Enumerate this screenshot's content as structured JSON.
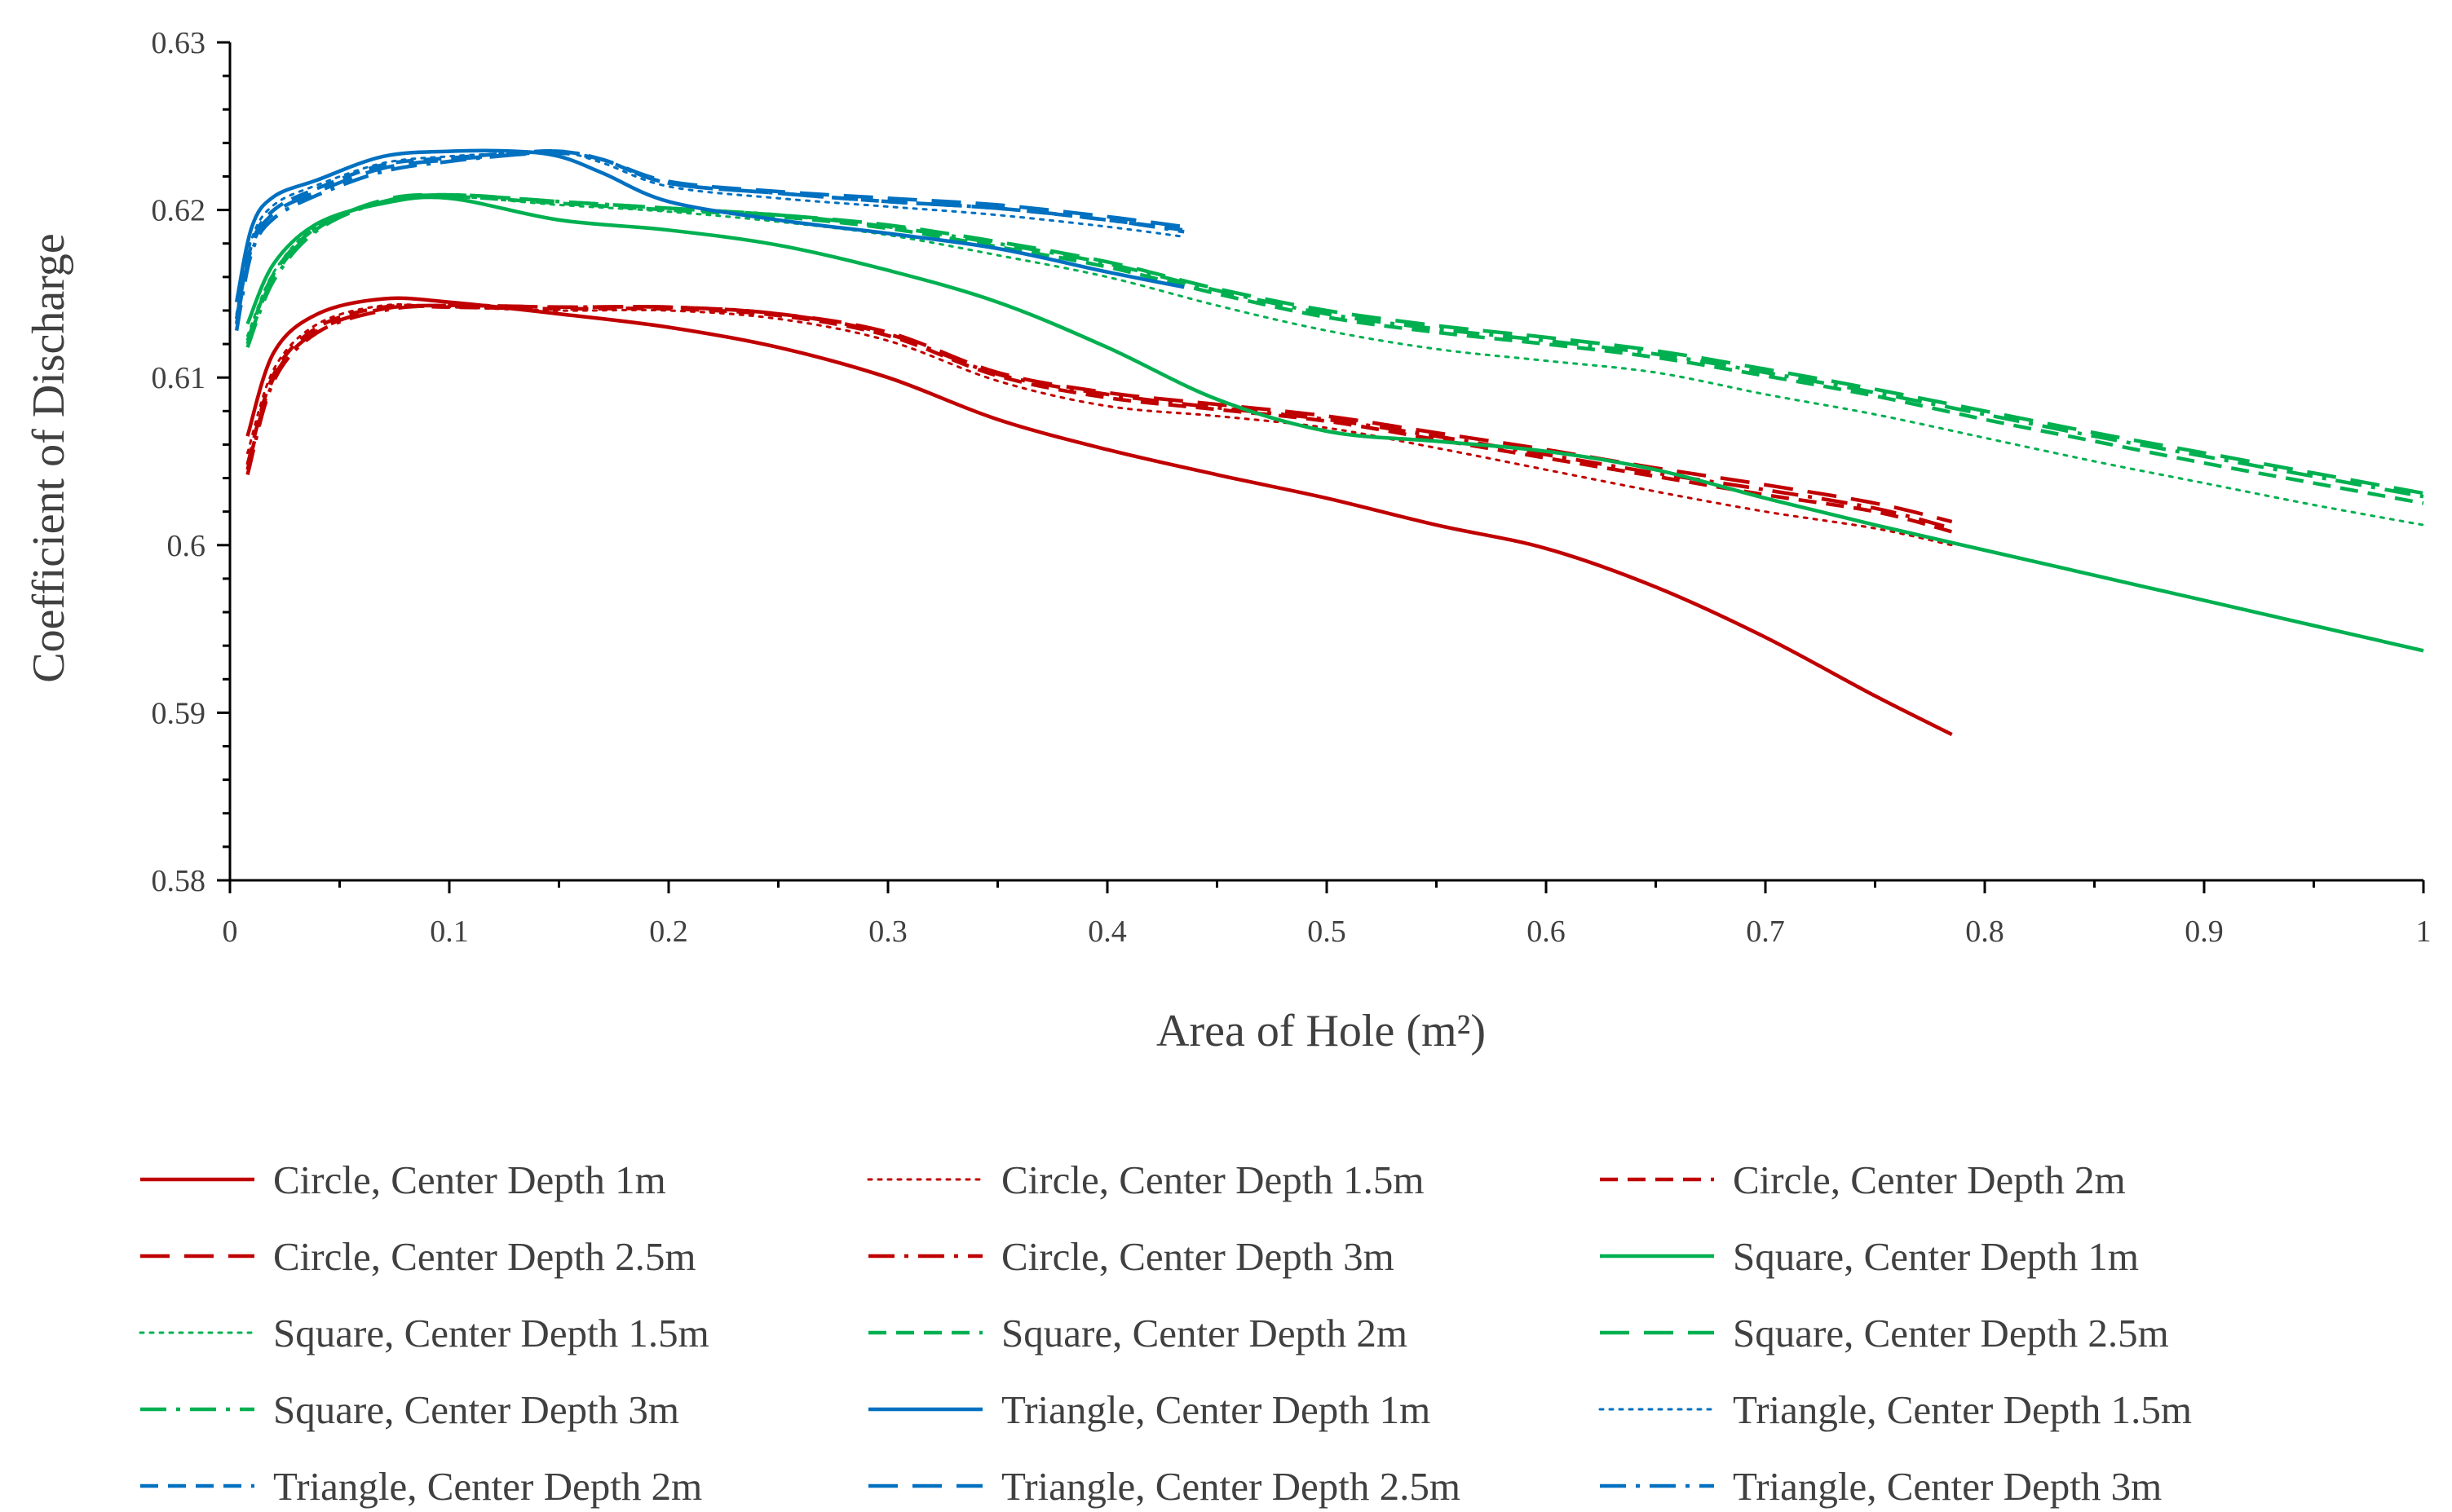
{
  "chart_data": {
    "type": "line",
    "title": "",
    "xlabel": "Area of Hole (m²)",
    "ylabel": "Coefficient of Discharge",
    "xlim": [
      0,
      1
    ],
    "ylim": [
      0.58,
      0.63
    ],
    "grid": false,
    "legend_position": "bottom",
    "x_ticks": [
      "0",
      "0.1",
      "0.2",
      "0.3",
      "0.4",
      "0.5",
      "0.6",
      "0.7",
      "0.8",
      "0.9",
      "1"
    ],
    "y_ticks": [
      "0.58",
      "0.59",
      "0.6",
      "0.61",
      "0.62",
      "0.63"
    ],
    "series": [
      {
        "name": "Circle, Center Depth 1m",
        "color": "#C00000",
        "style": "solid",
        "x": [
          0.008,
          0.02,
          0.04,
          0.07,
          0.1,
          0.15,
          0.2,
          0.25,
          0.3,
          0.35,
          0.4,
          0.45,
          0.5,
          0.55,
          0.6,
          0.65,
          0.7,
          0.75,
          0.785
        ],
        "y": [
          0.6065,
          0.6115,
          0.6138,
          0.6147,
          0.6145,
          0.6138,
          0.613,
          0.6118,
          0.61,
          0.6075,
          0.6057,
          0.6042,
          0.6028,
          0.6012,
          0.5998,
          0.5975,
          0.5945,
          0.591,
          0.5887
        ]
      },
      {
        "name": "Circle, Center Depth 1.5m",
        "color": "#C00000",
        "style": "dot",
        "x": [
          0.008,
          0.02,
          0.04,
          0.07,
          0.1,
          0.15,
          0.2,
          0.25,
          0.3,
          0.35,
          0.4,
          0.45,
          0.5,
          0.55,
          0.6,
          0.65,
          0.7,
          0.75,
          0.785
        ],
        "y": [
          0.6055,
          0.6105,
          0.6132,
          0.6143,
          0.6142,
          0.614,
          0.614,
          0.6135,
          0.6122,
          0.6098,
          0.6083,
          0.6077,
          0.607,
          0.6058,
          0.6045,
          0.6032,
          0.602,
          0.601,
          0.6
        ],
        "note": "style dotted"
      },
      {
        "name": "Circle, Center Depth 2m",
        "color": "#C00000",
        "style": "dash",
        "x": [
          0.008,
          0.02,
          0.04,
          0.07,
          0.1,
          0.15,
          0.2,
          0.25,
          0.3,
          0.35,
          0.4,
          0.45,
          0.5,
          0.55,
          0.6,
          0.65,
          0.7,
          0.75,
          0.785
        ],
        "y": [
          0.6048,
          0.6102,
          0.613,
          0.6142,
          0.6142,
          0.6141,
          0.6141,
          0.6137,
          0.6125,
          0.6101,
          0.6088,
          0.6081,
          0.6074,
          0.6063,
          0.6052,
          0.6041,
          0.603,
          0.602,
          0.6008
        ]
      },
      {
        "name": "Circle, Center Depth 2.5m",
        "color": "#C00000",
        "style": "longdash",
        "x": [
          0.008,
          0.02,
          0.04,
          0.07,
          0.1,
          0.15,
          0.2,
          0.25,
          0.3,
          0.35,
          0.4,
          0.45,
          0.5,
          0.55,
          0.6,
          0.65,
          0.7,
          0.75,
          0.785
        ],
        "y": [
          0.6045,
          0.61,
          0.6128,
          0.6141,
          0.6143,
          0.6142,
          0.6142,
          0.6138,
          0.6127,
          0.6103,
          0.6091,
          0.6084,
          0.6077,
          0.6067,
          0.6057,
          0.6046,
          0.6036,
          0.6025,
          0.6014
        ]
      },
      {
        "name": "Circle, Center Depth 3m",
        "color": "#C00000",
        "style": "dashdot",
        "x": [
          0.008,
          0.02,
          0.04,
          0.07,
          0.1,
          0.15,
          0.2,
          0.25,
          0.3,
          0.35,
          0.4,
          0.45,
          0.5,
          0.55,
          0.6,
          0.65,
          0.7,
          0.75,
          0.785
        ],
        "y": [
          0.6042,
          0.6098,
          0.6127,
          0.614,
          0.6143,
          0.6142,
          0.6142,
          0.6138,
          0.6126,
          0.6102,
          0.609,
          0.6082,
          0.6075,
          0.6065,
          0.6054,
          0.6043,
          0.6033,
          0.6022,
          0.601
        ]
      },
      {
        "name": "Square, Center Depth 1m",
        "color": "#00B050",
        "style": "solid",
        "x": [
          0.008,
          0.02,
          0.04,
          0.07,
          0.1,
          0.15,
          0.2,
          0.25,
          0.3,
          0.35,
          0.4,
          0.45,
          0.5,
          0.55,
          0.6,
          0.65,
          0.7,
          0.75,
          0.8,
          0.85,
          0.9,
          0.95,
          1.0
        ],
        "y": [
          0.6132,
          0.6168,
          0.6192,
          0.6204,
          0.6207,
          0.6194,
          0.6188,
          0.6179,
          0.6164,
          0.6145,
          0.6118,
          0.6087,
          0.6068,
          0.6062,
          0.6056,
          0.6045,
          0.6028,
          0.6012,
          0.5997,
          0.5982,
          0.5967,
          0.5952,
          0.5937
        ]
      },
      {
        "name": "Square, Center Depth 1.5m",
        "color": "#00B050",
        "style": "dot",
        "x": [
          0.008,
          0.02,
          0.04,
          0.07,
          0.1,
          0.15,
          0.2,
          0.25,
          0.3,
          0.35,
          0.4,
          0.45,
          0.5,
          0.55,
          0.6,
          0.65,
          0.7,
          0.75,
          0.8,
          0.85,
          0.9,
          0.95,
          1.0
        ],
        "y": [
          0.6125,
          0.6163,
          0.6191,
          0.6205,
          0.6208,
          0.6203,
          0.6199,
          0.6193,
          0.6185,
          0.6173,
          0.616,
          0.6143,
          0.6128,
          0.6117,
          0.611,
          0.6103,
          0.609,
          0.6078,
          0.6064,
          0.605,
          0.6037,
          0.6024,
          0.6012
        ]
      },
      {
        "name": "Square, Center Depth 2m",
        "color": "#00B050",
        "style": "dash",
        "x": [
          0.008,
          0.02,
          0.04,
          0.07,
          0.1,
          0.15,
          0.2,
          0.25,
          0.3,
          0.35,
          0.4,
          0.45,
          0.5,
          0.55,
          0.6,
          0.65,
          0.7,
          0.75,
          0.8,
          0.85,
          0.9,
          0.95,
          1.0
        ],
        "y": [
          0.6122,
          0.6162,
          0.619,
          0.6205,
          0.6208,
          0.6204,
          0.62,
          0.6196,
          0.6189,
          0.6178,
          0.6166,
          0.615,
          0.6136,
          0.6127,
          0.612,
          0.6112,
          0.6101,
          0.6089,
          0.6075,
          0.6062,
          0.6049,
          0.6037,
          0.6025
        ]
      },
      {
        "name": "Square, Center Depth 2.5m",
        "color": "#00B050",
        "style": "longdash",
        "x": [
          0.008,
          0.02,
          0.04,
          0.07,
          0.1,
          0.15,
          0.2,
          0.25,
          0.3,
          0.35,
          0.4,
          0.45,
          0.5,
          0.55,
          0.6,
          0.65,
          0.7,
          0.75,
          0.8,
          0.85,
          0.9,
          0.95,
          1.0
        ],
        "y": [
          0.612,
          0.616,
          0.6189,
          0.6206,
          0.6209,
          0.6205,
          0.6201,
          0.6197,
          0.6191,
          0.6181,
          0.6169,
          0.6153,
          0.614,
          0.6131,
          0.6124,
          0.6116,
          0.6105,
          0.6093,
          0.608,
          0.6067,
          0.6055,
          0.6043,
          0.6031
        ]
      },
      {
        "name": "Square, Center Depth 3m",
        "color": "#00B050",
        "style": "dashdot",
        "x": [
          0.008,
          0.02,
          0.04,
          0.07,
          0.1,
          0.15,
          0.2,
          0.25,
          0.3,
          0.35,
          0.4,
          0.45,
          0.5,
          0.55,
          0.6,
          0.65,
          0.7,
          0.75,
          0.8,
          0.85,
          0.9,
          0.95,
          1.0
        ],
        "y": [
          0.6118,
          0.6158,
          0.6188,
          0.6205,
          0.6209,
          0.6205,
          0.6201,
          0.6197,
          0.619,
          0.618,
          0.6168,
          0.6152,
          0.6138,
          0.6129,
          0.6122,
          0.6114,
          0.6103,
          0.6091,
          0.6078,
          0.6065,
          0.6053,
          0.6041,
          0.6029
        ]
      },
      {
        "name": "Triangle, Center Depth 1m",
        "color": "#0070C0",
        "style": "solid",
        "x": [
          0.003,
          0.01,
          0.02,
          0.04,
          0.07,
          0.1,
          0.13,
          0.15,
          0.17,
          0.2,
          0.25,
          0.3,
          0.35,
          0.4,
          0.435
        ],
        "y": [
          0.6145,
          0.619,
          0.6208,
          0.6218,
          0.6232,
          0.6235,
          0.6235,
          0.6232,
          0.6222,
          0.6205,
          0.6194,
          0.6186,
          0.6177,
          0.6163,
          0.6154
        ]
      },
      {
        "name": "Triangle, Center Depth 1.5m",
        "color": "#0070C0",
        "style": "dot",
        "x": [
          0.003,
          0.01,
          0.02,
          0.04,
          0.07,
          0.1,
          0.13,
          0.15,
          0.17,
          0.2,
          0.25,
          0.3,
          0.35,
          0.4,
          0.435
        ],
        "y": [
          0.6138,
          0.6183,
          0.6203,
          0.6215,
          0.6228,
          0.6232,
          0.6234,
          0.6235,
          0.6228,
          0.6214,
          0.6207,
          0.6202,
          0.6197,
          0.619,
          0.6184
        ]
      },
      {
        "name": "Triangle, Center Depth 2m",
        "color": "#0070C0",
        "style": "dash",
        "x": [
          0.003,
          0.01,
          0.02,
          0.04,
          0.07,
          0.1,
          0.13,
          0.15,
          0.17,
          0.2,
          0.25,
          0.3,
          0.35,
          0.4,
          0.435
        ],
        "y": [
          0.6135,
          0.618,
          0.62,
          0.6213,
          0.6227,
          0.6231,
          0.6234,
          0.6235,
          0.623,
          0.6216,
          0.621,
          0.6205,
          0.6201,
          0.6194,
          0.6188
        ]
      },
      {
        "name": "Triangle, Center Depth 2.5m",
        "color": "#0070C0",
        "style": "longdash",
        "x": [
          0.003,
          0.01,
          0.02,
          0.04,
          0.07,
          0.1,
          0.13,
          0.15,
          0.17,
          0.2,
          0.25,
          0.3,
          0.35,
          0.4,
          0.435
        ],
        "y": [
          0.6132,
          0.6178,
          0.6198,
          0.6211,
          0.6225,
          0.623,
          0.6233,
          0.6234,
          0.623,
          0.6217,
          0.6211,
          0.6207,
          0.6203,
          0.6196,
          0.619
        ]
      },
      {
        "name": "Triangle, Center Depth 3m",
        "color": "#0070C0",
        "style": "dashdot",
        "x": [
          0.003,
          0.01,
          0.02,
          0.04,
          0.07,
          0.1,
          0.13,
          0.15,
          0.17,
          0.2,
          0.25,
          0.3,
          0.35,
          0.4,
          0.435
        ],
        "y": [
          0.6128,
          0.6175,
          0.6195,
          0.6209,
          0.6223,
          0.6229,
          0.6233,
          0.6235,
          0.623,
          0.6216,
          0.621,
          0.6205,
          0.6201,
          0.6194,
          0.6187
        ]
      }
    ]
  }
}
